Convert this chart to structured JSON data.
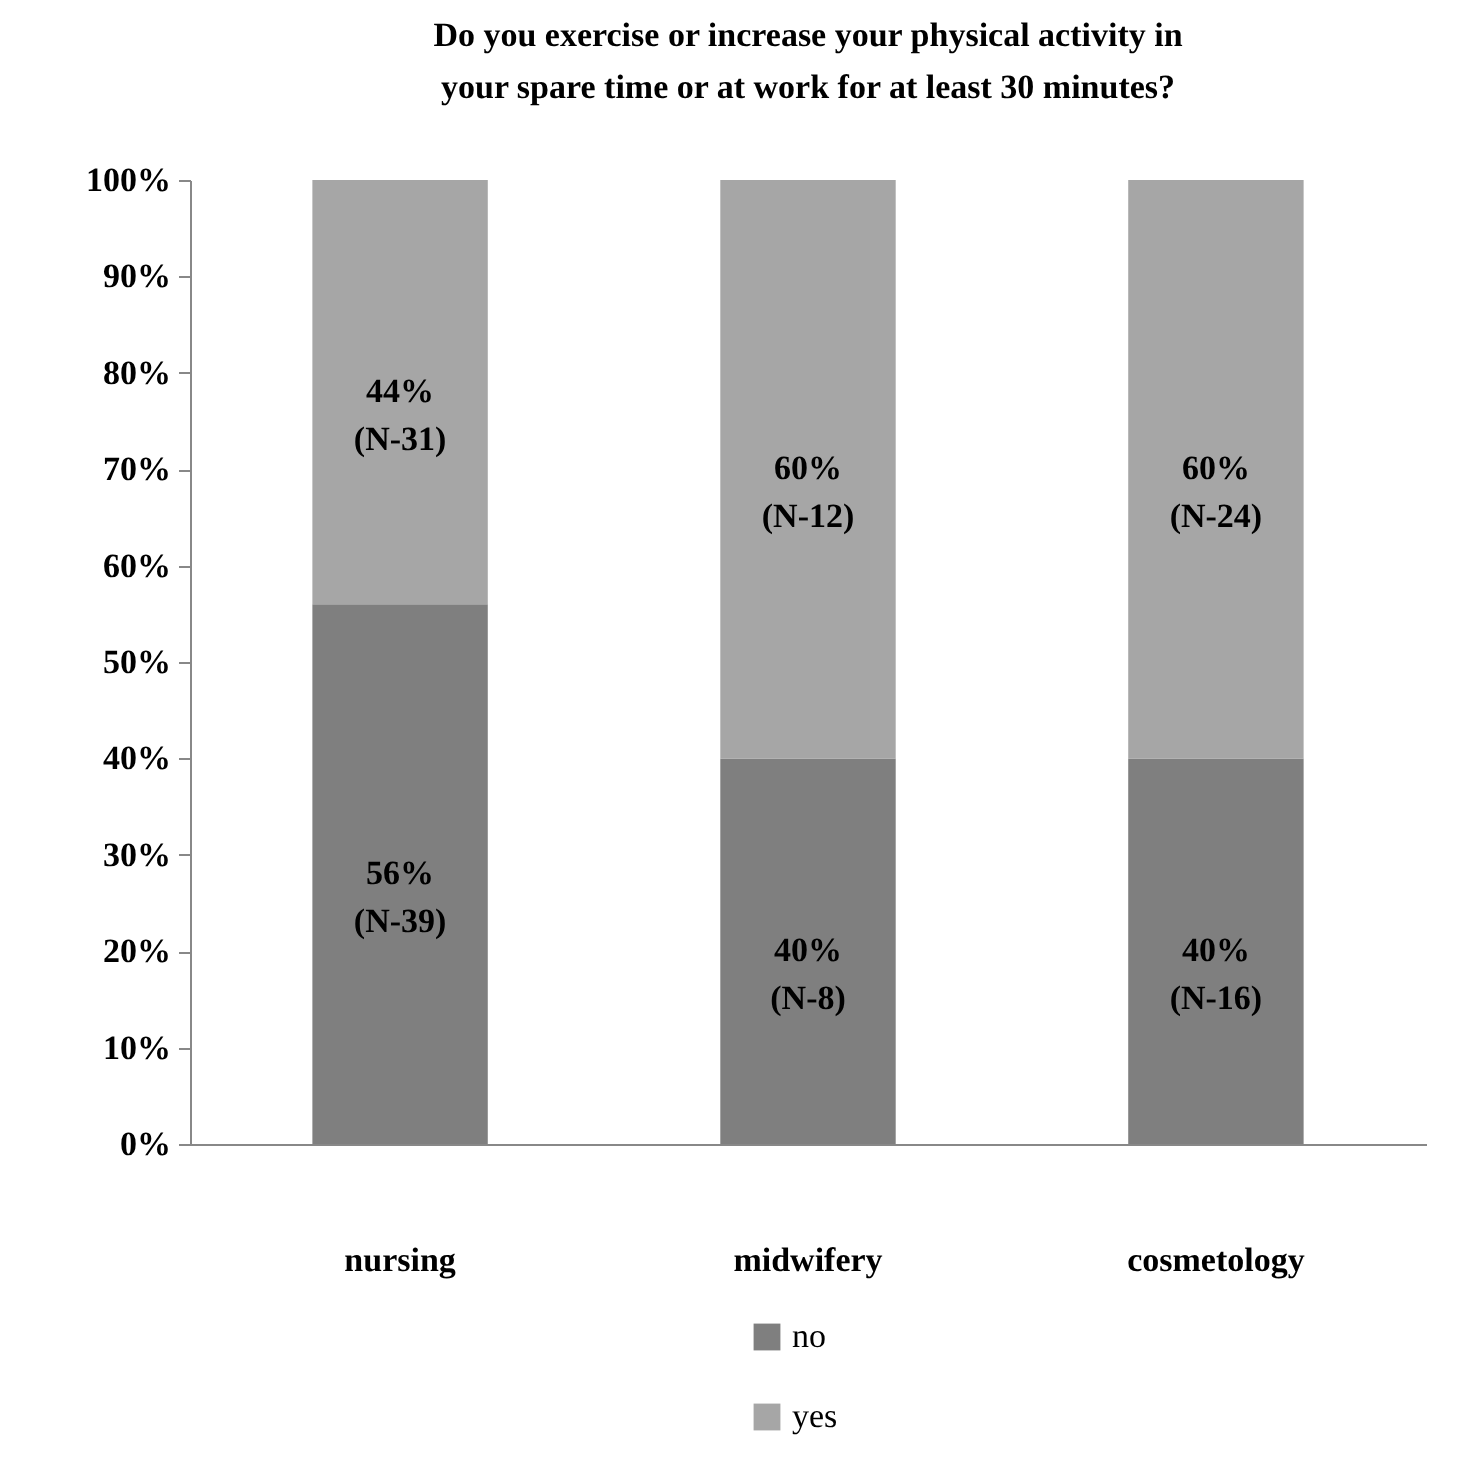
{
  "chart_data": {
    "type": "bar",
    "title": "Do you exercise or increase your physical activity in your spare time or at work for at least 30 minutes?",
    "categories": [
      "nursing",
      "midwifery",
      "cosmetology"
    ],
    "stacked": true,
    "series": [
      {
        "name": "no",
        "color": "#7f7f7f",
        "values": [
          56,
          40,
          40
        ],
        "value_labels": [
          "56%\n(N-39)",
          "40%\n(N-8)",
          "40%\n(N-16)"
        ]
      },
      {
        "name": "yes",
        "color": "#a6a6a6",
        "values": [
          44,
          60,
          60
        ],
        "value_labels": [
          "44%\n(N-31)",
          "60%\n(N-12)",
          "60%\n(N-24)"
        ]
      }
    ],
    "ylim": [
      0,
      100
    ],
    "yticks": [
      {
        "value": 0,
        "label": "0%"
      },
      {
        "value": 10,
        "label": "10%"
      },
      {
        "value": 20,
        "label": "20%"
      },
      {
        "value": 30,
        "label": "30%"
      },
      {
        "value": 40,
        "label": "40%"
      },
      {
        "value": 50,
        "label": "50%"
      },
      {
        "value": 60,
        "label": "60%"
      },
      {
        "value": 70,
        "label": "70%"
      },
      {
        "value": 80,
        "label": "80%"
      },
      {
        "value": 90,
        "label": "90%"
      },
      {
        "value": 100,
        "label": "100%"
      }
    ],
    "grid": false,
    "legend": "bottom"
  }
}
